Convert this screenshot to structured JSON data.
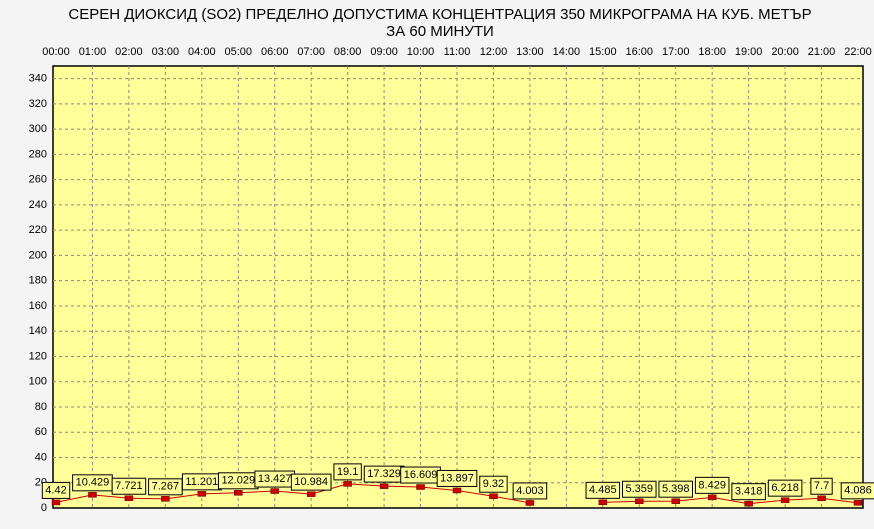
{
  "chart_data": {
    "type": "line",
    "title": "СЕРЕН ДИОКСИД  (SO2)  ПРЕДЕЛНО ДОПУСТИМА КОНЦЕНТРАЦИЯ 350 МИКРОГРАМА  НА КУБ. МЕТЪР",
    "subtitle": "ЗА 60 МИНУТИ",
    "categories": [
      "00:00",
      "01:00",
      "02:00",
      "03:00",
      "04:00",
      "05:00",
      "06:00",
      "07:00",
      "08:00",
      "09:00",
      "10:00",
      "11:00",
      "12:00",
      "13:00",
      "14:00",
      "15:00",
      "16:00",
      "17:00",
      "18:00",
      "19:00",
      "20:00",
      "21:00",
      "22:00"
    ],
    "values": [
      4.42,
      10.429,
      7.721,
      7.267,
      11.201,
      12.029,
      13.427,
      10.984,
      19.1,
      17.329,
      16.609,
      13.897,
      9.32,
      4.003,
      null,
      4.485,
      5.359,
      5.398,
      8.429,
      3.418,
      6.218,
      7.7,
      4.086
    ],
    "color": "#cc0000",
    "ylim": [
      0,
      350
    ],
    "yticks": [
      0,
      20,
      40,
      60,
      80,
      100,
      120,
      140,
      160,
      180,
      200,
      220,
      240,
      260,
      280,
      300,
      320,
      340
    ],
    "grid": true
  }
}
